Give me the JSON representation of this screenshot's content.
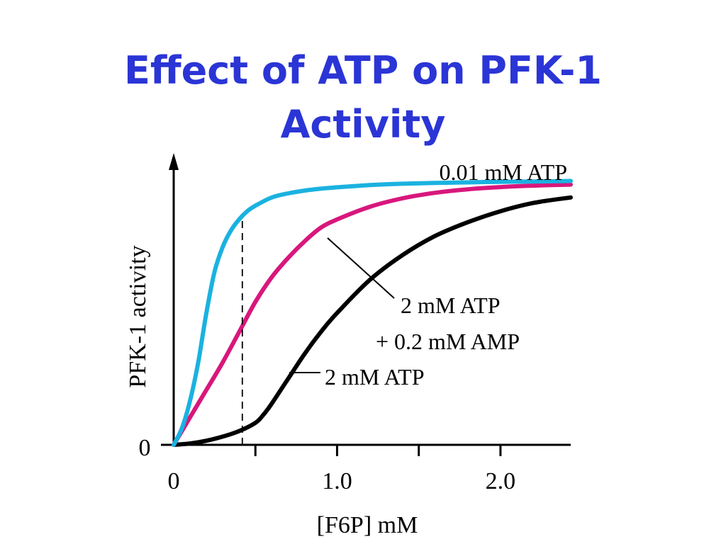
{
  "slide": {
    "title_line1": "Effect of ATP on PFK-1",
    "title_line2": "Activity"
  },
  "chart_data": {
    "type": "line",
    "xlabel": "[F6P] mM",
    "ylabel": "PFK-1 activity",
    "xlim": [
      0,
      2.43
    ],
    "ylim": [
      0,
      1.0
    ],
    "x_ticks": [
      {
        "value": 0,
        "label": "0"
      },
      {
        "value": 0.5,
        "label": ""
      },
      {
        "value": 1.0,
        "label": "1.0"
      },
      {
        "value": 1.5,
        "label": ""
      },
      {
        "value": 2.0,
        "label": "2.0"
      }
    ],
    "y_ticks": [
      {
        "value": 0,
        "label": "0"
      }
    ],
    "grid": false,
    "series": [
      {
        "name": "0.01 mM ATP",
        "color": "#1ab2e0",
        "x": [
          0,
          0.05,
          0.1,
          0.15,
          0.2,
          0.25,
          0.3,
          0.35,
          0.4,
          0.45,
          0.5,
          0.6,
          0.7,
          0.8,
          0.9,
          1.0,
          1.2,
          1.4,
          1.6,
          1.8,
          2.0,
          2.2,
          2.43
        ],
        "y": [
          0,
          0.06,
          0.16,
          0.3,
          0.48,
          0.63,
          0.72,
          0.78,
          0.82,
          0.85,
          0.87,
          0.9,
          0.915,
          0.925,
          0.932,
          0.937,
          0.945,
          0.95,
          0.953,
          0.955,
          0.957,
          0.958,
          0.96
        ]
      },
      {
        "name": "2 mM ATP + 0.2 mM AMP",
        "color": "#d8177c",
        "x": [
          0,
          0.1,
          0.2,
          0.3,
          0.4,
          0.5,
          0.6,
          0.7,
          0.8,
          0.9,
          1.0,
          1.2,
          1.4,
          1.6,
          1.8,
          2.0,
          2.2,
          2.43
        ],
        "y": [
          0,
          0.1,
          0.2,
          0.3,
          0.41,
          0.52,
          0.61,
          0.68,
          0.74,
          0.79,
          0.82,
          0.866,
          0.897,
          0.917,
          0.93,
          0.938,
          0.943,
          0.947
        ]
      },
      {
        "name": "2 mM ATP",
        "color": "#000000",
        "x": [
          0,
          0.1,
          0.2,
          0.3,
          0.4,
          0.5,
          0.55,
          0.6,
          0.7,
          0.8,
          0.9,
          1.0,
          1.2,
          1.4,
          1.6,
          1.8,
          2.0,
          2.2,
          2.43
        ],
        "y": [
          0,
          0.005,
          0.015,
          0.03,
          0.05,
          0.08,
          0.11,
          0.15,
          0.24,
          0.33,
          0.41,
          0.48,
          0.6,
          0.69,
          0.76,
          0.81,
          0.85,
          0.88,
          0.9
        ]
      }
    ],
    "annotations": {
      "dashed_line_x": 0.42,
      "label_0_01": "0.01 mM ATP",
      "label_amp_line1": "2 mM ATP",
      "label_amp_line2": "+ 0.2 mM AMP",
      "label_2mm": "2 mM ATP"
    }
  }
}
